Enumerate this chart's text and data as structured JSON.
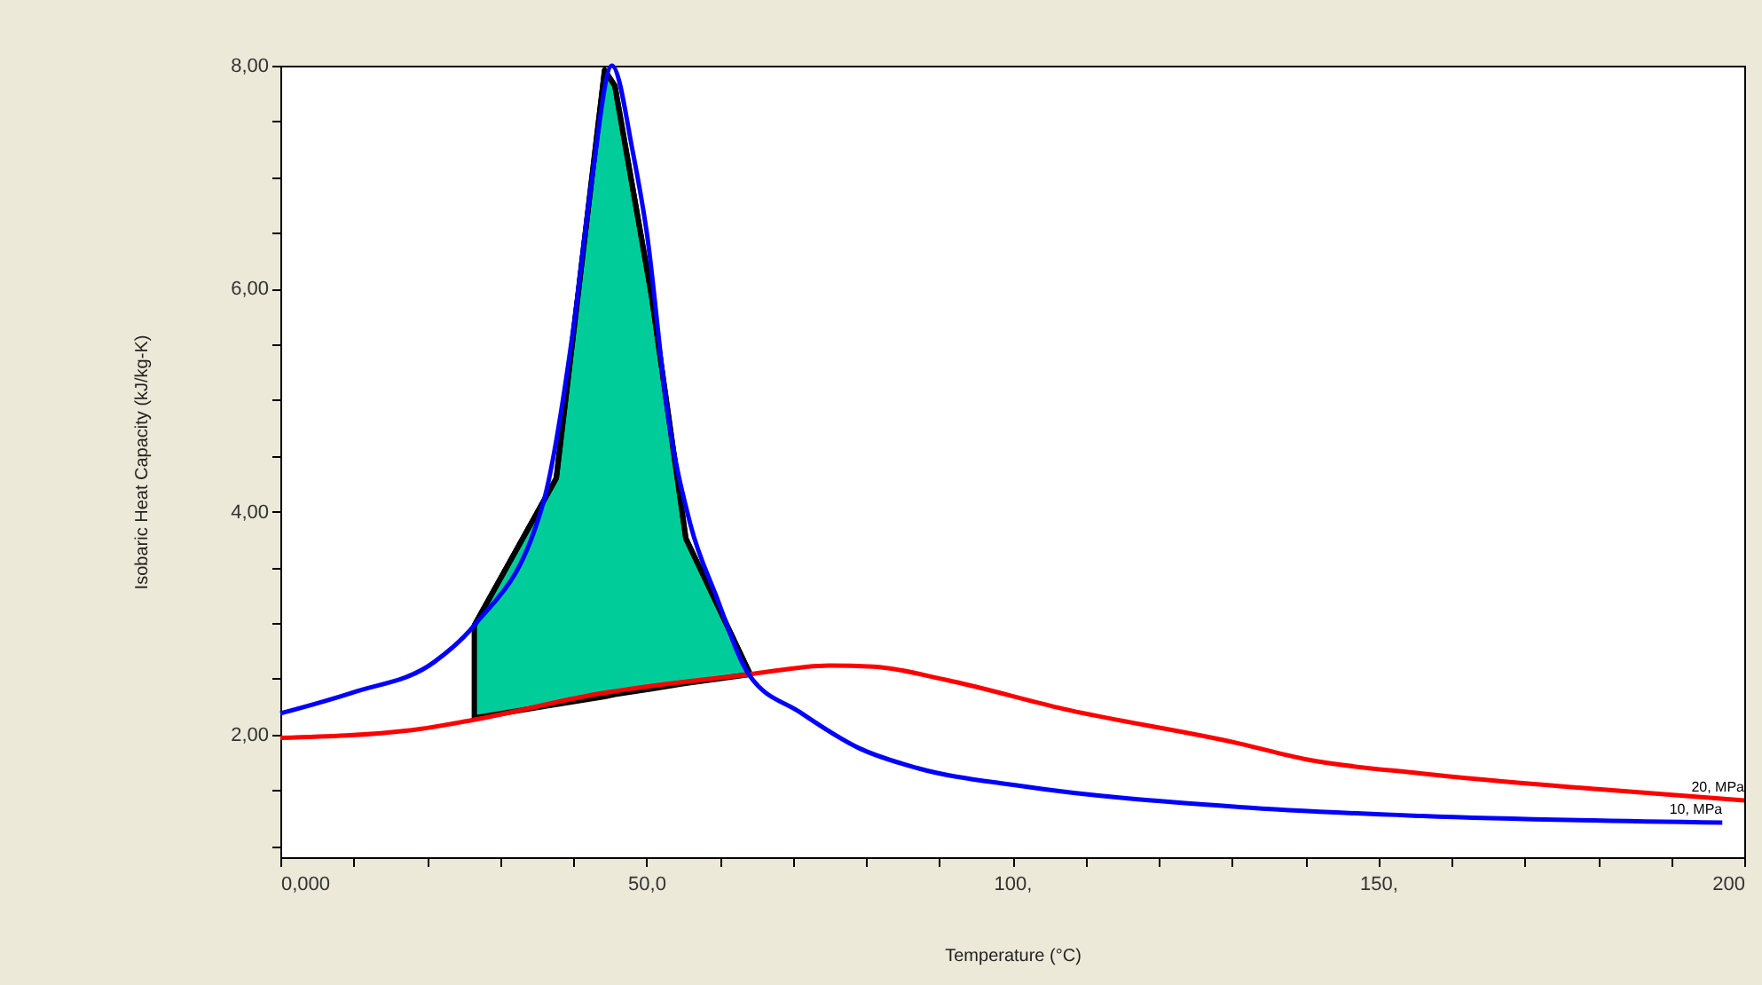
{
  "chart_data": {
    "type": "line",
    "xlabel": "Temperature (°C)",
    "ylabel": "Isobaric Heat Capacity (kJ/kg-K)",
    "xlim": [
      0,
      200
    ],
    "ylim": [
      0.9,
      8
    ],
    "xticks": [
      {
        "value": 0,
        "label": "0,000"
      },
      {
        "value": 10,
        "label": null
      },
      {
        "value": 20,
        "label": null
      },
      {
        "value": 30,
        "label": null
      },
      {
        "value": 40,
        "label": null
      },
      {
        "value": 50,
        "label": "50,0"
      },
      {
        "value": 60,
        "label": null
      },
      {
        "value": 70,
        "label": null
      },
      {
        "value": 80,
        "label": null
      },
      {
        "value": 90,
        "label": null
      },
      {
        "value": 100,
        "label": "100,"
      },
      {
        "value": 110,
        "label": null
      },
      {
        "value": 120,
        "label": null
      },
      {
        "value": 130,
        "label": null
      },
      {
        "value": 140,
        "label": null
      },
      {
        "value": 150,
        "label": "150,"
      },
      {
        "value": 160,
        "label": null
      },
      {
        "value": 170,
        "label": null
      },
      {
        "value": 180,
        "label": null
      },
      {
        "value": 190,
        "label": null
      },
      {
        "value": 200,
        "label": "200"
      }
    ],
    "yticks": [
      {
        "value": 1,
        "label": null
      },
      {
        "value": 1.5,
        "label": null
      },
      {
        "value": 2,
        "label": "2,00"
      },
      {
        "value": 2.5,
        "label": null
      },
      {
        "value": 3,
        "label": null
      },
      {
        "value": 3.5,
        "label": null
      },
      {
        "value": 4,
        "label": "4,00"
      },
      {
        "value": 4.5,
        "label": null
      },
      {
        "value": 5,
        "label": null
      },
      {
        "value": 5.5,
        "label": null
      },
      {
        "value": 6,
        "label": "6,00"
      },
      {
        "value": 6.5,
        "label": null
      },
      {
        "value": 7,
        "label": null
      },
      {
        "value": 7.5,
        "label": null
      },
      {
        "value": 8,
        "label": "8,00"
      }
    ],
    "grid": false,
    "legend": false,
    "marker": "none",
    "line_style": "solid",
    "series": [
      {
        "name": "20, MPa",
        "color": "#ff0000",
        "x": [
          0,
          18,
          27,
          43,
          64,
          75,
          81,
          91,
          107,
          131,
          140,
          156,
          180,
          200
        ],
        "values": [
          1.97,
          2.04,
          2.14,
          2.36,
          2.54,
          2.62,
          2.61,
          2.49,
          2.23,
          1.92,
          1.78,
          1.65,
          1.51,
          1.41
        ]
      },
      {
        "name": "10, MPa",
        "color": "#0000ff",
        "x": [
          0,
          10,
          21,
          26.5,
          36,
          40,
          42.5,
          45.3,
          48.2,
          50,
          53,
          56,
          59.5,
          64,
          71,
          79,
          87,
          101,
          131,
          156,
          197
        ],
        "values": [
          2.19,
          2.38,
          2.65,
          2.98,
          4.1,
          5.63,
          6.95,
          8.0,
          7.21,
          6.53,
          4.84,
          3.89,
          3.25,
          2.54,
          2.2,
          1.88,
          1.7,
          1.54,
          1.35,
          1.27,
          1.21
        ]
      },
      {
        "type": "line",
        "color": "#000000",
        "x": [
          26.5,
          37.7,
          44.3,
          45.7,
          50.7,
          55.4,
          64.2
        ],
        "values": [
          2.98,
          4.3,
          7.96,
          7.82,
          5.94,
          3.76,
          2.54
        ],
        "upper": [
          2.98,
          4.3,
          7.96,
          7.82,
          5.94,
          3.76,
          2.54
        ],
        "lower": [
          2.15,
          2.27,
          2.34,
          2.36,
          2.41,
          2.46,
          2.54
        ]
      }
    ]
  }
}
